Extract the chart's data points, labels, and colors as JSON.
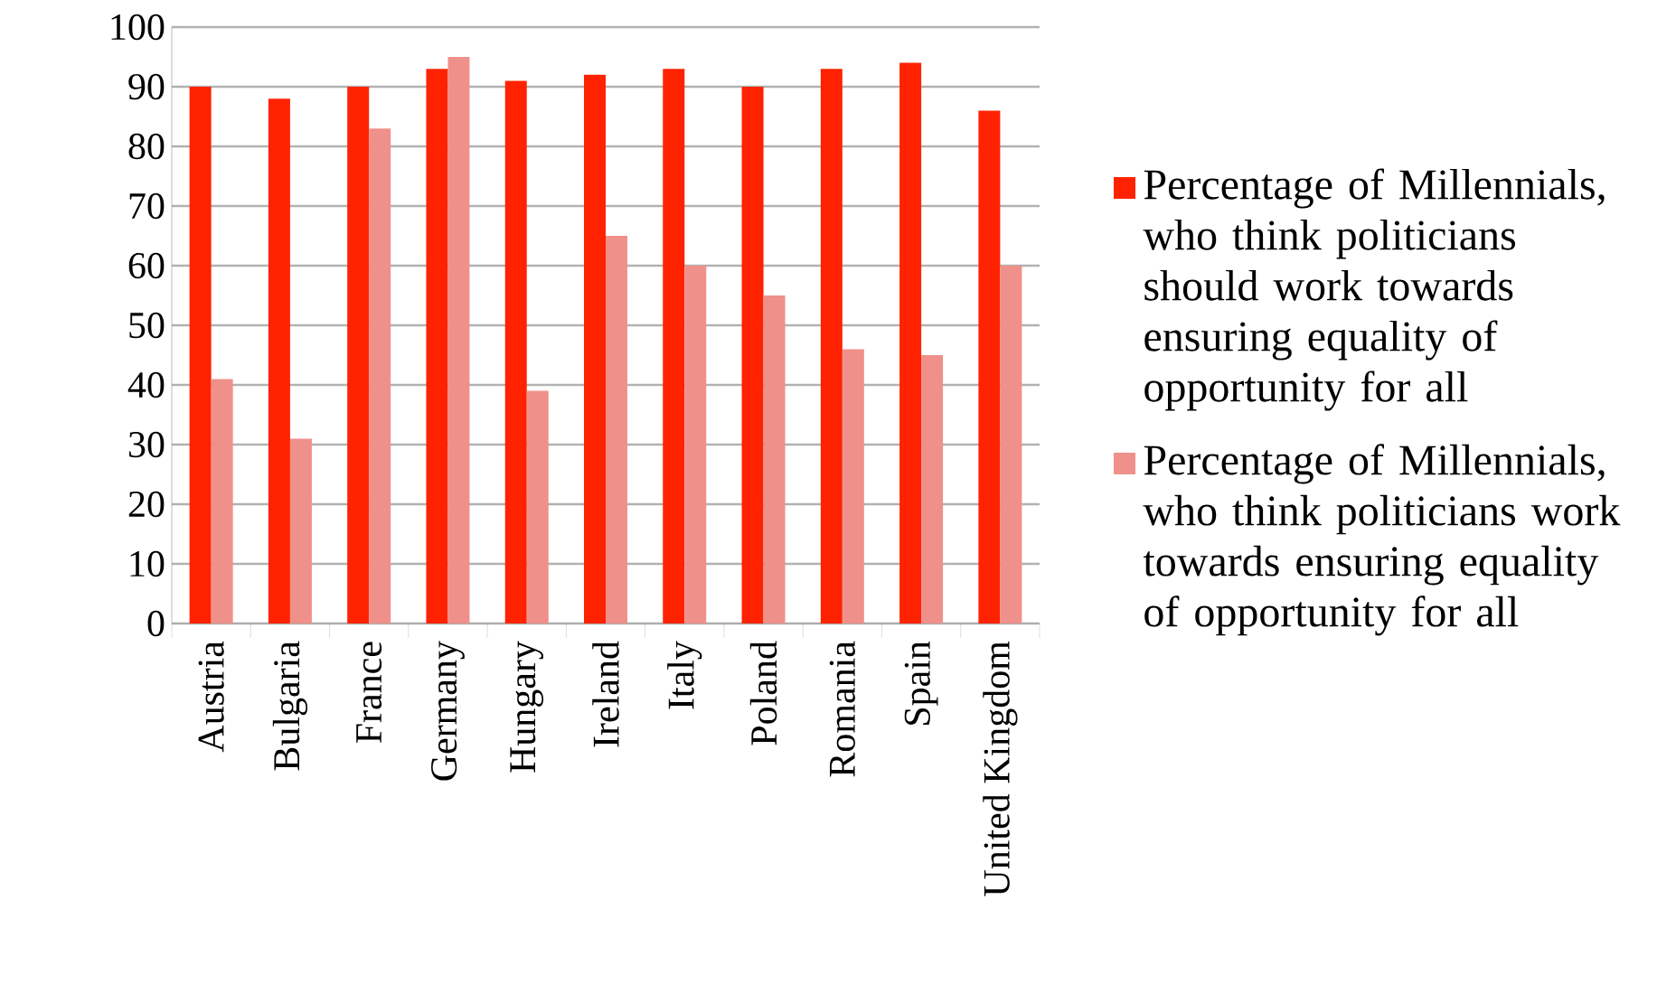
{
  "chart_data": {
    "type": "bar",
    "categories": [
      "Austria",
      "Bulgaria",
      "France",
      "Germany",
      "Hungary",
      "Ireland",
      "Italy",
      "Poland",
      "Romania",
      "Spain",
      "United Kingdom"
    ],
    "series": [
      {
        "name": "Percentage of Millennials, who think politicians should work towards ensuring equality of opportunity for all",
        "color": "#ff2200",
        "values": [
          90,
          88,
          90,
          93,
          91,
          92,
          93,
          90,
          93,
          94,
          86
        ]
      },
      {
        "name": "Percentage of Millennials, who think politicians work towards ensuring equality of opportunity for all",
        "color": "#f0908a",
        "values": [
          41,
          31,
          83,
          95,
          39,
          65,
          60,
          55,
          46,
          45,
          60
        ]
      }
    ],
    "ylim": [
      0,
      100
    ],
    "yticks": [
      0,
      10,
      20,
      30,
      40,
      50,
      60,
      70,
      80,
      90,
      100
    ],
    "grid": "y",
    "legend": "right"
  }
}
